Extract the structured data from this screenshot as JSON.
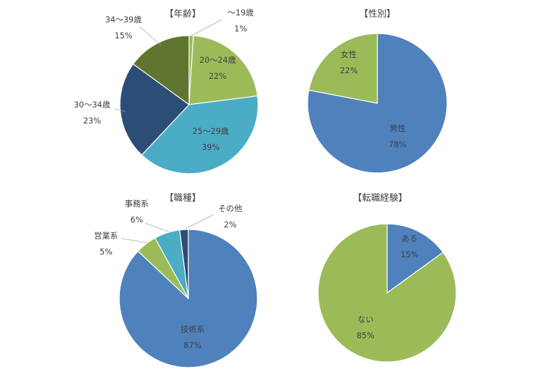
{
  "chart_data": [
    {
      "type": "pie",
      "title": "【年齢】",
      "slices": [
        {
          "label": "～19歳",
          "value": 1,
          "display": "1%",
          "color": "#9bbb59"
        },
        {
          "label": "20～24歳",
          "value": 22,
          "display": "22%",
          "color": "#9bbb59"
        },
        {
          "label": "25～29歳",
          "value": 39,
          "display": "39%",
          "color": "#4bacc6"
        },
        {
          "label": "30～34歳",
          "value": 23,
          "display": "23%",
          "color": "#2c4d75"
        },
        {
          "label": "34～39歳",
          "value": 15,
          "display": "15%",
          "color": "#5f7530"
        }
      ]
    },
    {
      "type": "pie",
      "title": "【性別】",
      "slices": [
        {
          "label": "男性",
          "value": 78,
          "display": "78%",
          "color": "#4f81bd"
        },
        {
          "label": "女性",
          "value": 22,
          "display": "22%",
          "color": "#9bbb59"
        }
      ]
    },
    {
      "type": "pie",
      "title": "【職種】",
      "slices": [
        {
          "label": "技術系",
          "value": 87,
          "display": "87%",
          "color": "#4f81bd"
        },
        {
          "label": "営業系",
          "value": 5,
          "display": "5%",
          "color": "#9bbb59"
        },
        {
          "label": "事務系",
          "value": 6,
          "display": "6%",
          "color": "#4bacc6"
        },
        {
          "label": "その他",
          "value": 2,
          "display": "2%",
          "color": "#2c4d75"
        }
      ]
    },
    {
      "type": "pie",
      "title": "【転職経験】",
      "slices": [
        {
          "label": "ある",
          "value": 15,
          "display": "15%",
          "color": "#4f81bd"
        },
        {
          "label": "ない",
          "value": 85,
          "display": "85%",
          "color": "#9bbb59"
        }
      ]
    }
  ]
}
